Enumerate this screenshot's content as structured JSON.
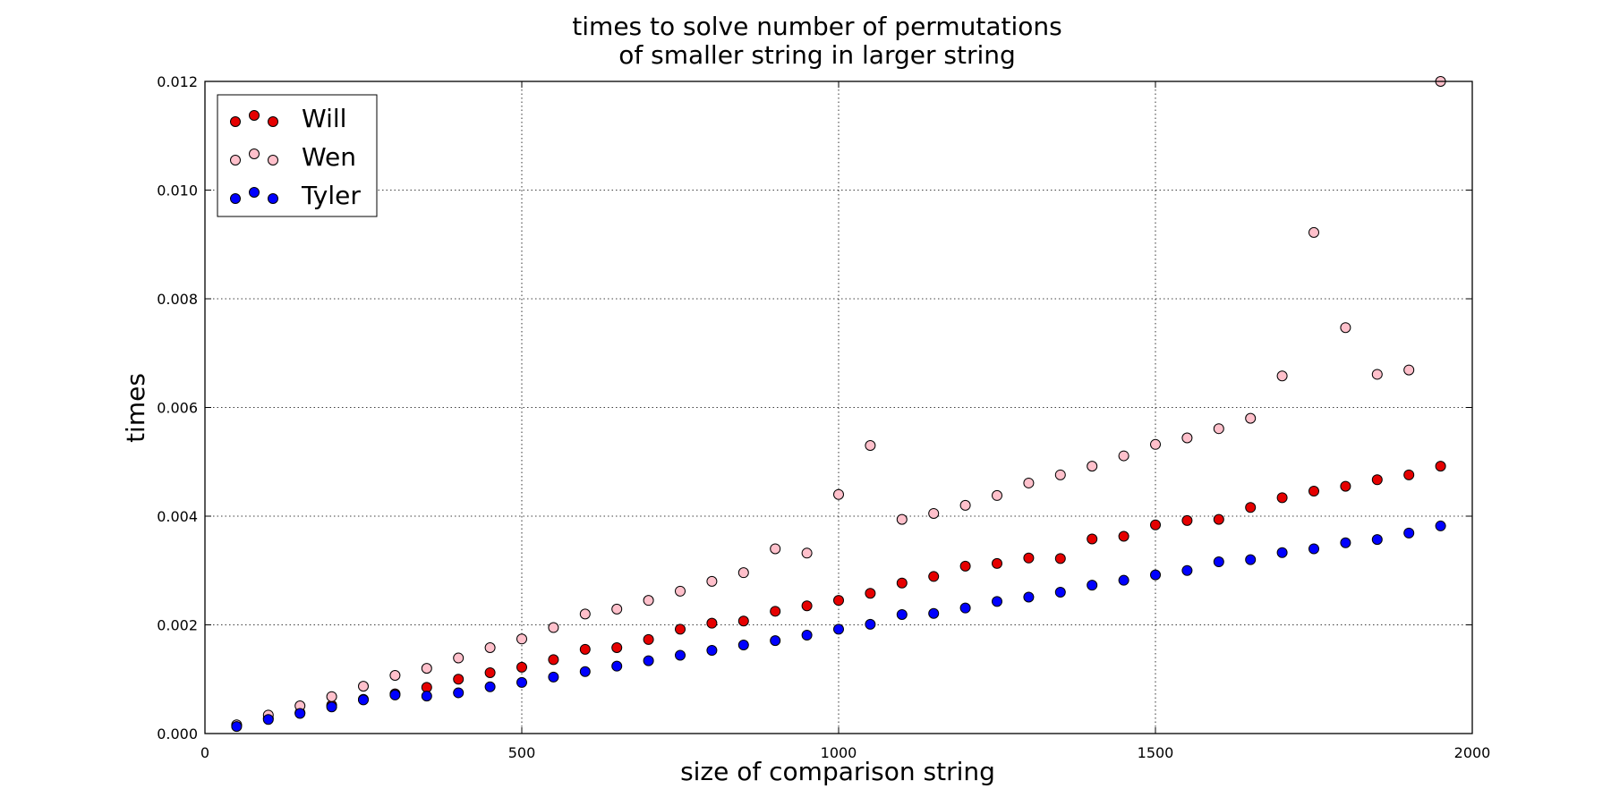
{
  "chart_data": {
    "type": "scatter",
    "title_lines": [
      "times to solve number of permutations",
      "of smaller string in larger string"
    ],
    "xlabel": "size of comparison string",
    "ylabel": "times",
    "xlim": [
      0,
      2000
    ],
    "ylim": [
      0,
      0.012
    ],
    "x_ticks": [
      "0",
      "500",
      "1000",
      "1500",
      "2000"
    ],
    "y_ticks": [
      "0.000",
      "0.002",
      "0.004",
      "0.006",
      "0.008",
      "0.010",
      "0.012"
    ],
    "grid": true,
    "grid_style": "dotted",
    "legend_position": "upper-left",
    "x": [
      50,
      100,
      150,
      200,
      250,
      300,
      350,
      400,
      450,
      500,
      550,
      600,
      650,
      700,
      750,
      800,
      850,
      900,
      950,
      1000,
      1050,
      1100,
      1150,
      1200,
      1250,
      1300,
      1350,
      1400,
      1450,
      1500,
      1550,
      1600,
      1650,
      1700,
      1750,
      1800,
      1850,
      1900,
      1950
    ],
    "series": [
      {
        "name": "Will",
        "color": "#e50000",
        "values": [
          0.00015,
          0.00028,
          0.00038,
          0.00052,
          0.00063,
          0.00073,
          0.00085,
          0.001,
          0.00112,
          0.00122,
          0.00136,
          0.00155,
          0.00158,
          0.00173,
          0.00192,
          0.00203,
          0.00207,
          0.00225,
          0.00235,
          0.00245,
          0.00258,
          0.00277,
          0.00289,
          0.00308,
          0.00313,
          0.00323,
          0.00322,
          0.00358,
          0.00363,
          0.00384,
          0.00392,
          0.00394,
          0.00416,
          0.00434,
          0.00446,
          0.00455,
          0.00467,
          0.00476,
          0.00492
        ]
      },
      {
        "name": "Wen",
        "color": "#ffc0cb",
        "values": [
          0.00016,
          0.00034,
          0.00051,
          0.00068,
          0.00087,
          0.00107,
          0.0012,
          0.00139,
          0.00158,
          0.00174,
          0.00195,
          0.0022,
          0.00229,
          0.00245,
          0.00262,
          0.0028,
          0.00296,
          0.0034,
          0.00332,
          0.0044,
          0.0053,
          0.00394,
          0.00405,
          0.0042,
          0.00438,
          0.00461,
          0.00476,
          0.00492,
          0.00511,
          0.00532,
          0.00544,
          0.00561,
          0.0058,
          0.00658,
          0.00922,
          0.00747,
          0.00661,
          0.00669,
          0.0121
        ]
      },
      {
        "name": "Tyler",
        "color": "#0000ff",
        "values": [
          0.00013,
          0.00026,
          0.00037,
          0.00049,
          0.00062,
          0.00071,
          0.00069,
          0.00075,
          0.00086,
          0.00094,
          0.00104,
          0.00114,
          0.00124,
          0.00134,
          0.00144,
          0.00153,
          0.00163,
          0.00171,
          0.00181,
          0.00192,
          0.00201,
          0.00219,
          0.00221,
          0.00231,
          0.00243,
          0.00251,
          0.0026,
          0.00273,
          0.00282,
          0.00292,
          0.003,
          0.00316,
          0.0032,
          0.00333,
          0.0034,
          0.00351,
          0.00357,
          0.00369,
          0.00382
        ]
      }
    ]
  }
}
